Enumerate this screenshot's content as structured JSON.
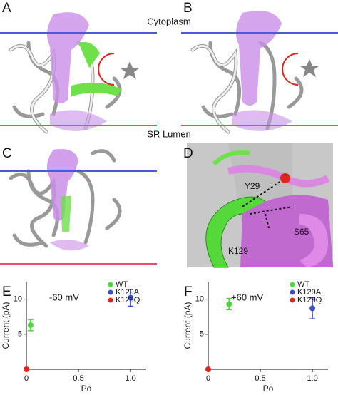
{
  "panels": {
    "labels": [
      "A",
      "B",
      "C",
      "D"
    ],
    "membrane": {
      "top": "Cytoplasm",
      "bottom": "SR Lumen"
    },
    "residues": [
      "Y29",
      "S65",
      "K129"
    ]
  },
  "chart_data": [
    {
      "type": "scatter",
      "panel": "E",
      "annotation": "-60 mV",
      "x_label": "Po",
      "y_label": "Current (pA)",
      "xlim": [
        0,
        1.15
      ],
      "xticks": [
        0,
        0.5,
        {
          "value": 1,
          "label": "1.0"
        }
      ],
      "ylim": [
        0,
        -12.5
      ],
      "yticks": [
        -10,
        -5
      ],
      "grid": false,
      "legend": "upper right",
      "series": [
        {
          "name": "WT",
          "color": "#4cd93a",
          "x": [
            0.04
          ],
          "values": [
            -6.3
          ],
          "errors": [
            0.8
          ]
        },
        {
          "name": "K129A",
          "color": "#3a4ed0",
          "x": [
            1.0
          ],
          "values": [
            -10.2
          ],
          "errors": [
            1.2
          ]
        },
        {
          "name": "K129Q",
          "color": "#e0261c",
          "x": [
            0
          ],
          "values": [
            0
          ]
        }
      ]
    },
    {
      "type": "scatter",
      "panel": "F",
      "annotation": "+60 mV",
      "x_label": "Po",
      "y_label": "Current (pA)",
      "xlim": [
        0,
        1.15
      ],
      "xticks": [
        0,
        0.5,
        {
          "value": 1,
          "label": "1.0"
        }
      ],
      "ylim": [
        0,
        12.5
      ],
      "yticks": [
        10,
        5
      ],
      "grid": false,
      "legend": "upper right",
      "series": [
        {
          "name": "WT",
          "color": "#4cd93a",
          "x": [
            0.2
          ],
          "values": [
            9.3
          ],
          "errors": [
            0.8
          ]
        },
        {
          "name": "K129A",
          "color": "#3a4ed0",
          "x": [
            1.0
          ],
          "values": [
            8.7
          ],
          "errors": [
            1.5
          ]
        },
        {
          "name": "K129Q",
          "color": "#e0261c",
          "x": [
            0
          ],
          "values": [
            0
          ]
        }
      ]
    }
  ]
}
